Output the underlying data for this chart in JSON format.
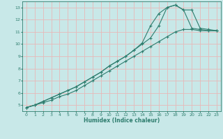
{
  "xlabel": "Humidex (Indice chaleur)",
  "background_color": "#c8e8e8",
  "grid_color": "#e8b8b8",
  "line_color": "#2e7d6e",
  "xlim": [
    -0.5,
    23.5
  ],
  "ylim": [
    4.5,
    13.5
  ],
  "xticks": [
    0,
    1,
    2,
    3,
    4,
    5,
    6,
    7,
    8,
    9,
    10,
    11,
    12,
    13,
    14,
    15,
    16,
    17,
    18,
    19,
    20,
    21,
    22,
    23
  ],
  "yticks": [
    5,
    6,
    7,
    8,
    9,
    10,
    11,
    12,
    13
  ],
  "line1_x": [
    0,
    1,
    2,
    3,
    4,
    5,
    6,
    7,
    8,
    9,
    10,
    11,
    12,
    13,
    14,
    15,
    16,
    17,
    18,
    19,
    20,
    21,
    22,
    23
  ],
  "line1_y": [
    4.8,
    5.0,
    5.2,
    5.4,
    5.7,
    5.9,
    6.2,
    6.6,
    7.0,
    7.4,
    7.8,
    8.2,
    8.6,
    9.0,
    9.4,
    9.8,
    10.2,
    10.6,
    11.0,
    11.2,
    11.2,
    11.1,
    11.1,
    11.1
  ],
  "line2_x": [
    0,
    1,
    2,
    3,
    4,
    5,
    6,
    7,
    8,
    9,
    10,
    11,
    12,
    13,
    14,
    15,
    16,
    17,
    18,
    19,
    20,
    21,
    22,
    23
  ],
  "line2_y": [
    4.8,
    5.0,
    5.3,
    5.6,
    5.9,
    6.2,
    6.5,
    6.9,
    7.3,
    7.7,
    8.2,
    8.6,
    9.0,
    9.5,
    10.1,
    11.5,
    12.5,
    13.0,
    13.2,
    12.8,
    11.3,
    11.2,
    11.1,
    11.1
  ],
  "line3_x": [
    0,
    1,
    2,
    3,
    4,
    5,
    6,
    7,
    8,
    9,
    10,
    11,
    12,
    13,
    14,
    15,
    16,
    17,
    18,
    19,
    20,
    21,
    22,
    23
  ],
  "line3_y": [
    4.8,
    5.0,
    5.3,
    5.6,
    5.9,
    6.2,
    6.5,
    6.9,
    7.3,
    7.7,
    8.2,
    8.6,
    9.0,
    9.5,
    10.0,
    10.5,
    11.5,
    13.0,
    13.2,
    12.8,
    12.8,
    11.3,
    11.2,
    11.1
  ]
}
